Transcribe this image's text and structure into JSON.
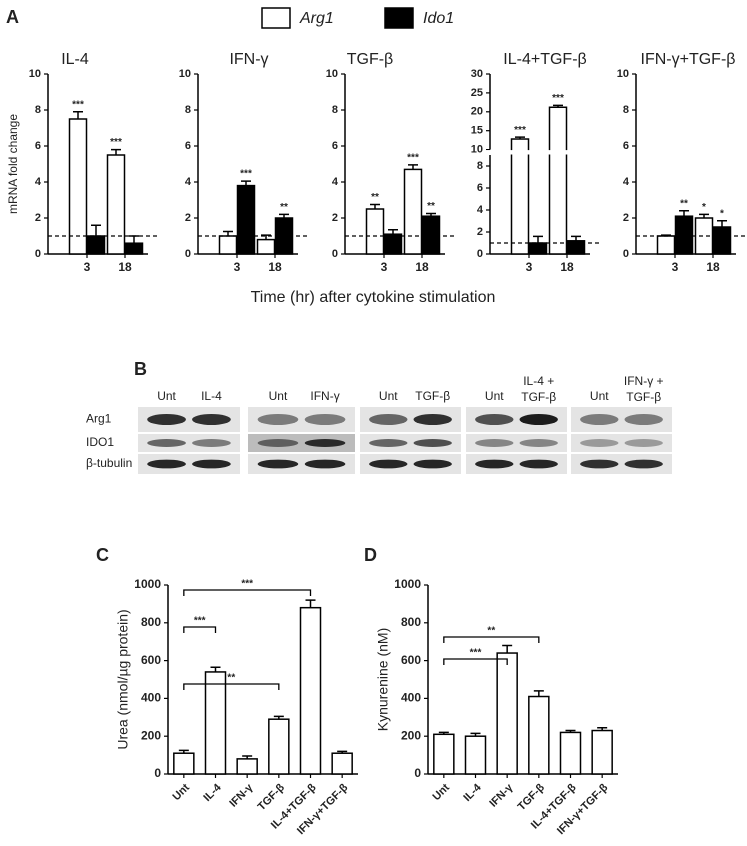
{
  "chart_data": [
    {
      "type": "bar",
      "panel": "A",
      "title": "IL-4",
      "ylabel": "mRNA fold change",
      "xlabel": "Time (hr) after cytokine stimulation",
      "categories": [
        "3",
        "18"
      ],
      "series": [
        {
          "name": "Arg1",
          "color": "#ffffff",
          "values": [
            7.5,
            5.5
          ],
          "errors": [
            0.4,
            0.3
          ],
          "significance": [
            "***",
            "***"
          ]
        },
        {
          "name": "Ido1",
          "color": "#000000",
          "values": [
            1.0,
            0.6
          ],
          "errors": [
            0.6,
            0.4
          ],
          "significance": [
            null,
            null
          ]
        }
      ],
      "ylim": [
        0,
        10
      ],
      "yticks": [
        0,
        2,
        4,
        6,
        8,
        10
      ],
      "reference_line": 1
    },
    {
      "type": "bar",
      "title": "IFN-γ",
      "categories": [
        "3",
        "18"
      ],
      "series": [
        {
          "name": "Arg1",
          "color": "#ffffff",
          "values": [
            1.0,
            0.8
          ],
          "errors": [
            0.25,
            0.25
          ],
          "significance": [
            null,
            null
          ]
        },
        {
          "name": "Ido1",
          "color": "#000000",
          "values": [
            3.8,
            2.0
          ],
          "errors": [
            0.25,
            0.2
          ],
          "significance": [
            "***",
            "**"
          ]
        }
      ],
      "ylim": [
        0,
        10
      ],
      "yticks": [
        0,
        2,
        4,
        6,
        8,
        10
      ],
      "reference_line": 1
    },
    {
      "type": "bar",
      "title": "TGF-β",
      "categories": [
        "3",
        "18"
      ],
      "series": [
        {
          "name": "Arg1",
          "color": "#ffffff",
          "values": [
            2.5,
            4.7
          ],
          "errors": [
            0.25,
            0.25
          ],
          "significance": [
            "**",
            "***"
          ]
        },
        {
          "name": "Ido1",
          "color": "#000000",
          "values": [
            1.1,
            2.1
          ],
          "errors": [
            0.25,
            0.15
          ],
          "significance": [
            null,
            "**"
          ]
        }
      ],
      "ylim": [
        0,
        10
      ],
      "yticks": [
        0,
        2,
        4,
        6,
        8,
        10
      ],
      "reference_line": 1
    },
    {
      "type": "bar",
      "title": "IL-4+TGF-β",
      "categories": [
        "3",
        "18"
      ],
      "series": [
        {
          "name": "Arg1",
          "color": "#ffffff",
          "values": [
            12.8,
            21.2
          ],
          "errors": [
            0.5,
            0.5
          ],
          "significance": [
            "***",
            "***"
          ]
        },
        {
          "name": "Ido1",
          "color": "#000000",
          "values": [
            1.0,
            1.2
          ],
          "errors": [
            0.6,
            0.4
          ],
          "significance": [
            null,
            null
          ]
        }
      ],
      "ylim": [
        0,
        30
      ],
      "ybreak": [
        9,
        10
      ],
      "yticks": [
        0,
        2,
        4,
        6,
        8,
        10,
        15,
        20,
        25,
        30
      ],
      "reference_line": 1
    },
    {
      "type": "bar",
      "title": "IFN-γ+TGF-β",
      "categories": [
        "3",
        "18"
      ],
      "series": [
        {
          "name": "Arg1",
          "color": "#ffffff",
          "values": [
            1.0,
            2.0
          ],
          "errors": [
            0.05,
            0.2
          ],
          "significance": [
            null,
            "*"
          ]
        },
        {
          "name": "Ido1",
          "color": "#000000",
          "values": [
            2.1,
            1.5
          ],
          "errors": [
            0.3,
            0.35
          ],
          "significance": [
            "**",
            "*"
          ]
        }
      ],
      "ylim": [
        0,
        10
      ],
      "yticks": [
        0,
        2,
        4,
        6,
        8,
        10
      ],
      "reference_line": 1
    },
    {
      "type": "bar",
      "panel": "C",
      "ylabel": "Urea (nmol/µg protein)",
      "categories": [
        "Unt",
        "IL-4",
        "IFN-γ",
        "TGF-β",
        "IL-4+TGF-β",
        "IFN-γ+TGF-β"
      ],
      "series": [
        {
          "color": "#ffffff",
          "values": [
            110,
            540,
            80,
            290,
            880,
            110
          ],
          "errors": [
            15,
            25,
            15,
            15,
            40,
            10
          ]
        }
      ],
      "ylim": [
        0,
        1000
      ],
      "yticks": [
        0,
        200,
        400,
        600,
        800,
        1000
      ],
      "comparisons": [
        {
          "from": "Unt",
          "to": "IL-4",
          "label": "***"
        },
        {
          "from": "Unt",
          "to": "TGF-β",
          "label": "**"
        },
        {
          "from": "Unt",
          "to": "IL-4+TGF-β",
          "label": "***"
        }
      ]
    },
    {
      "type": "bar",
      "panel": "D",
      "ylabel": "Kynurenine (nM)",
      "categories": [
        "Unt",
        "IL-4",
        "IFN-γ",
        "TGF-β",
        "IL-4+TGF-β",
        "IFN-γ+TGF-β"
      ],
      "series": [
        {
          "color": "#ffffff",
          "values": [
            210,
            200,
            640,
            410,
            220,
            230
          ],
          "errors": [
            10,
            15,
            40,
            30,
            10,
            15
          ]
        }
      ],
      "ylim": [
        0,
        1000
      ],
      "yticks": [
        0,
        200,
        400,
        600,
        800,
        1000
      ],
      "comparisons": [
        {
          "from": "Unt",
          "to": "IFN-γ",
          "label": "***"
        },
        {
          "from": "Unt",
          "to": "TGF-β",
          "label": "**"
        }
      ]
    }
  ],
  "blot": {
    "panel": "B",
    "rows": [
      "Arg1",
      "IDO1",
      "β-tubulin"
    ],
    "groups": [
      {
        "lanes": [
          "Unt",
          "IL-4"
        ]
      },
      {
        "lanes": [
          "Unt",
          "IFN-γ"
        ]
      },
      {
        "lanes": [
          "Unt",
          "TGF-β"
        ]
      },
      {
        "lanes": [
          "Unt",
          [
            "IL-4 +",
            "TGF-β"
          ]
        ]
      },
      {
        "lanes": [
          "Unt",
          [
            "IFN-γ +",
            "TGF-β"
          ]
        ]
      }
    ]
  }
}
